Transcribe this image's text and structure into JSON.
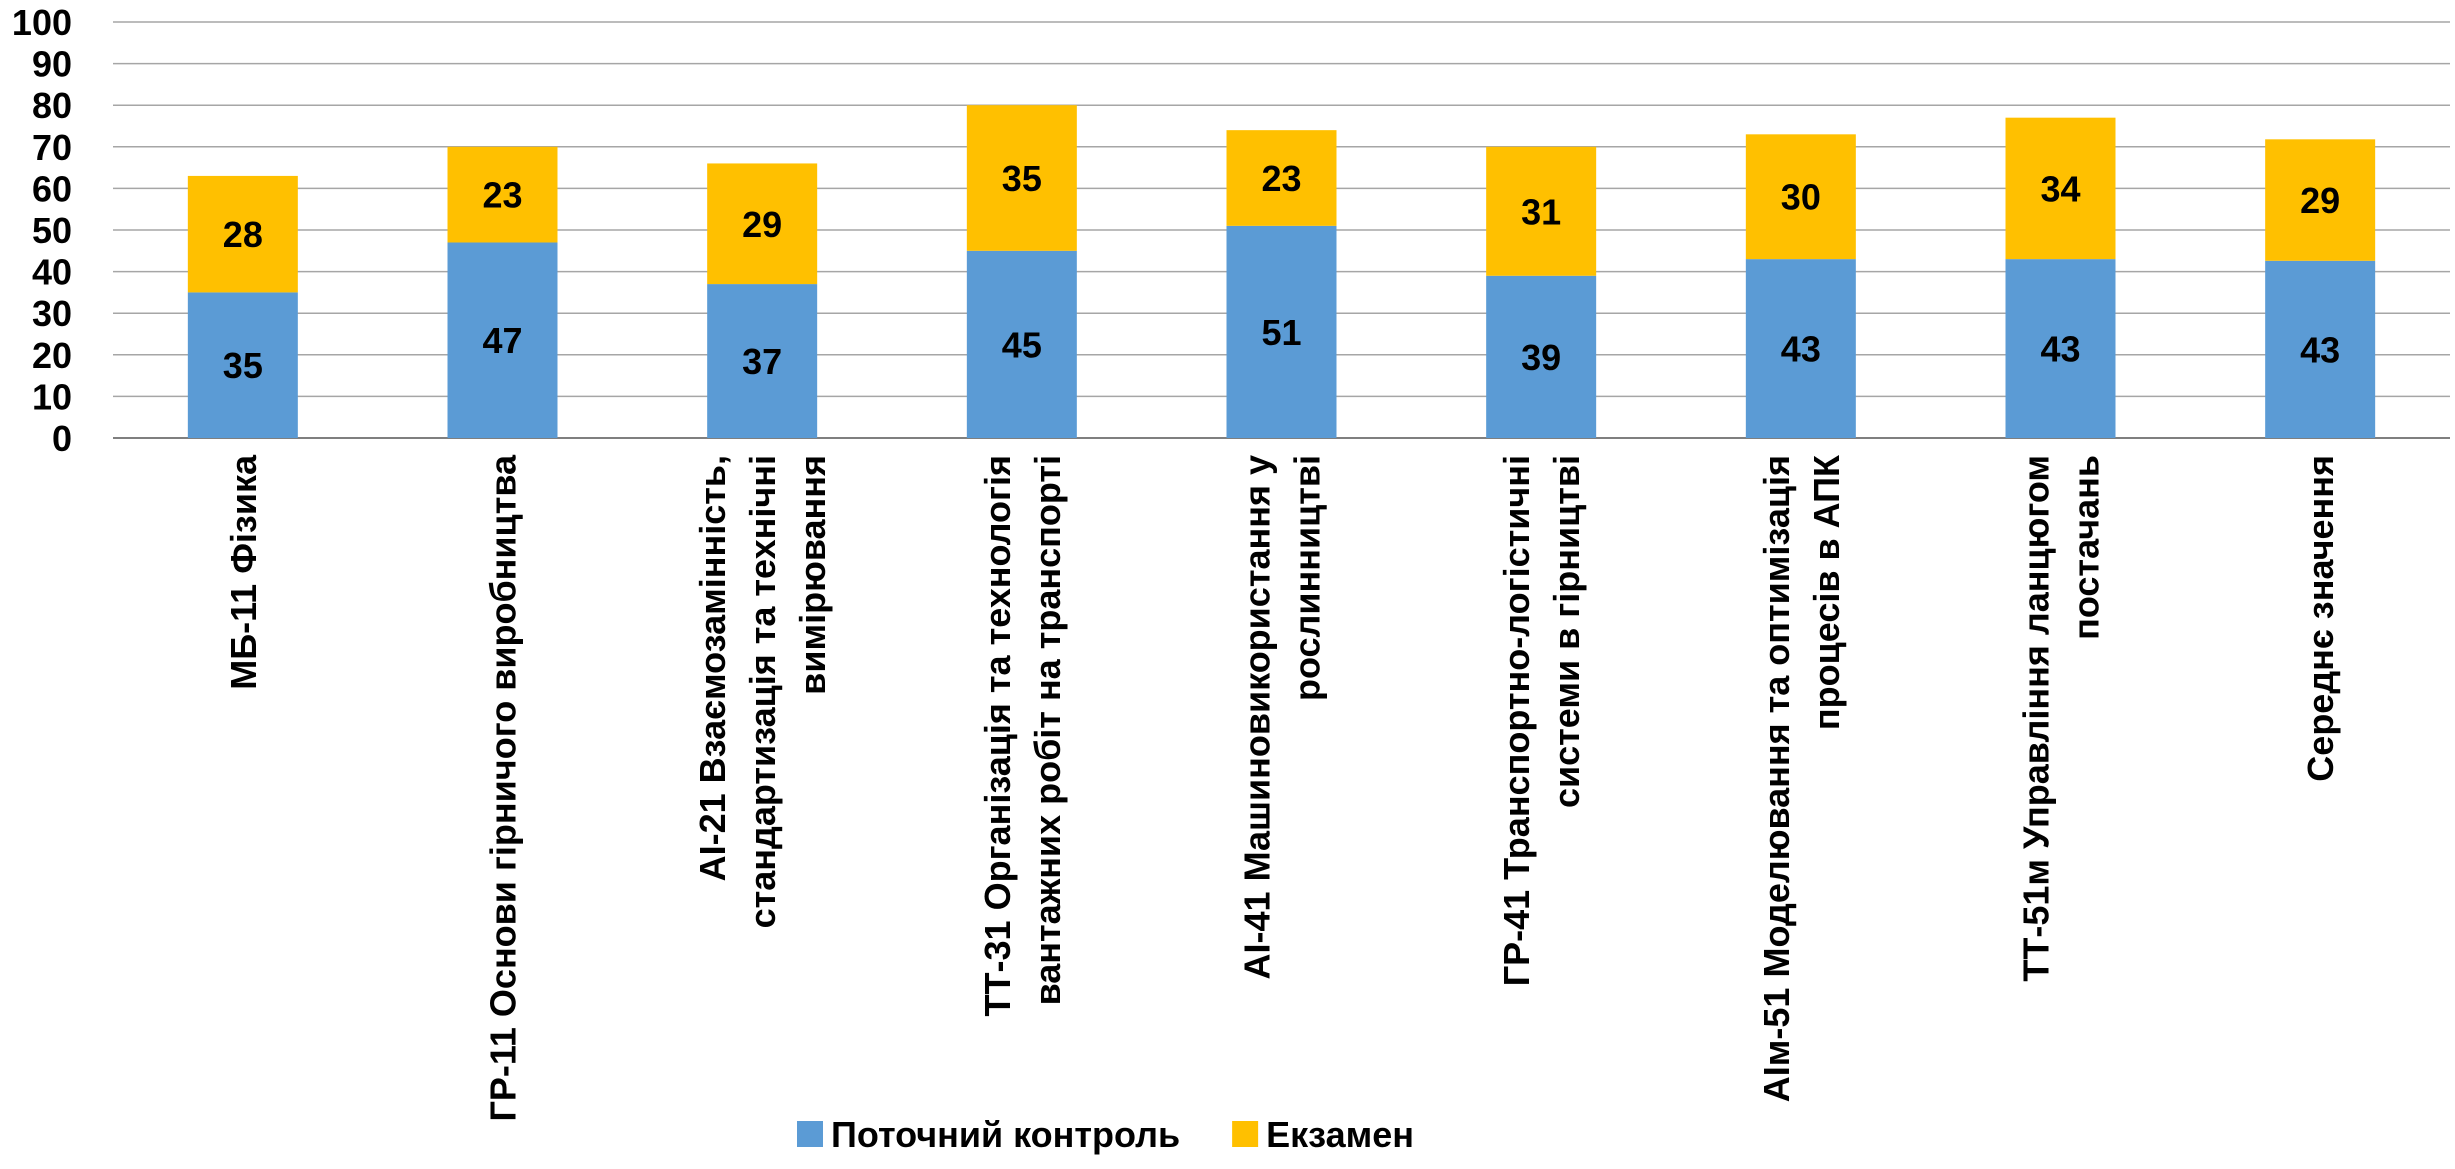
{
  "chart_data": {
    "type": "bar",
    "stacked": true,
    "title": "",
    "xlabel": "",
    "ylabel": "",
    "ylim": [
      0,
      100
    ],
    "yticks": [
      0,
      10,
      20,
      30,
      40,
      50,
      60,
      70,
      80,
      90,
      100
    ],
    "grid": true,
    "legend_position": "bottom",
    "categories": [
      [
        "МБ-11 Фізика"
      ],
      [
        "ГР-11 Основи гірничого виробництва"
      ],
      [
        "АІ-21 Взаємозамінність,",
        "стандартизація та технічні",
        "вимірювання"
      ],
      [
        "ТТ-31 Організація та технологія",
        "вантажних робіт на транспорті"
      ],
      [
        "АІ-41 Машиновикористання у",
        "рослинництві"
      ],
      [
        "ГР-41 Транспортно-логістичні",
        "системи в гірництві"
      ],
      [
        "АІм-51 Моделювання та оптимізація",
        "процесів в АПК"
      ],
      [
        "ТТ-51м Управління ланцюгом",
        "постачань"
      ],
      [
        "Середнє значення"
      ]
    ],
    "series": [
      {
        "name": "Поточний контроль",
        "color": "#5b9bd5",
        "values": [
          35,
          47,
          37,
          45,
          51,
          39,
          43,
          43,
          42.6
        ]
      },
      {
        "name": "Екзамен",
        "color": "#ffc000",
        "values": [
          28,
          23,
          29,
          35,
          23,
          31,
          30,
          34,
          29.2
        ]
      }
    ],
    "data_labels": [
      [
        "35",
        "47",
        "37",
        "45",
        "51",
        "39",
        "43",
        "43",
        "43"
      ],
      [
        "28",
        "23",
        "29",
        "35",
        "23",
        "31",
        "30",
        "34",
        "29"
      ]
    ]
  }
}
